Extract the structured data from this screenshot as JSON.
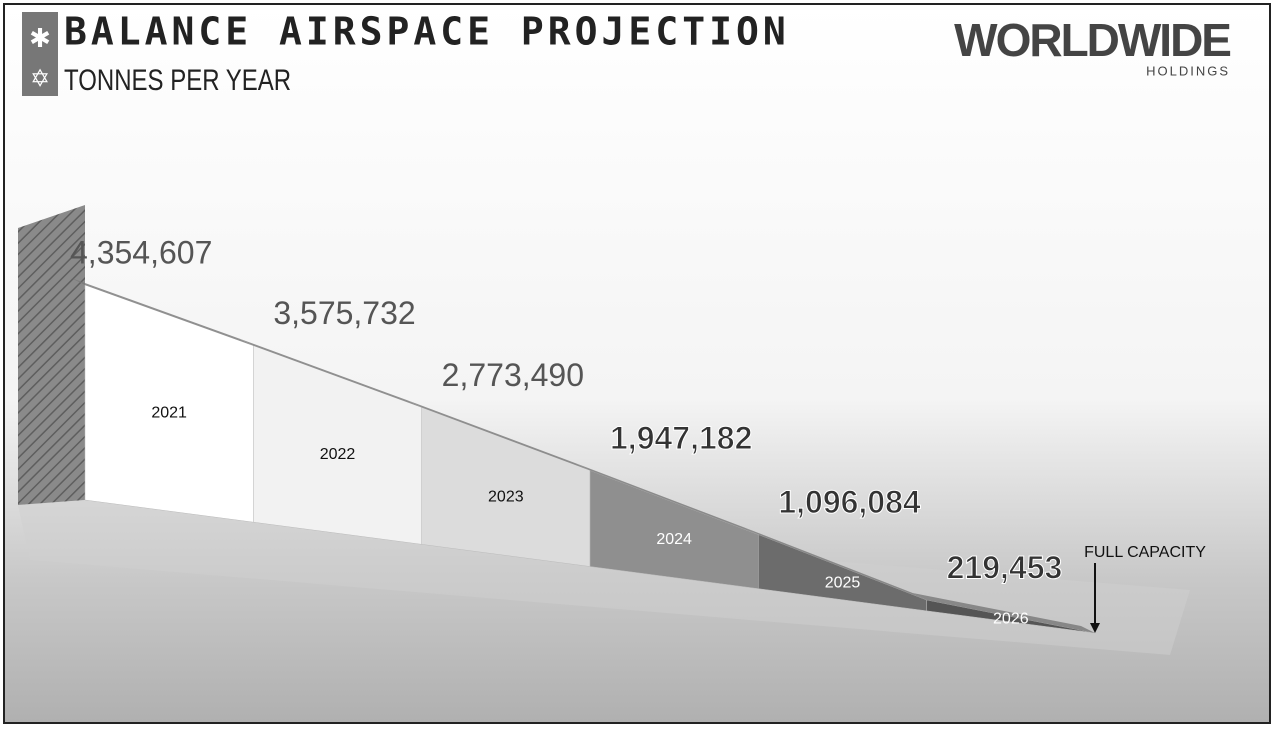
{
  "chart_data": {
    "type": "area3d",
    "title": "BALANCE AIRSPACE PROJECTION",
    "subtitle": "TONNES PER YEAR",
    "categories": [
      "2021",
      "2022",
      "2023",
      "2024",
      "2025",
      "2026"
    ],
    "values": [
      4354607,
      3575732,
      2773490,
      1947182,
      1096084,
      219453
    ],
    "value_labels": [
      "4,354,607",
      "3,575,732",
      "2,773,490",
      "1,947,182",
      "1,096,084",
      "219,453"
    ],
    "colors": [
      "#ffffff",
      "#f2f2f2",
      "#dcdcdc",
      "#8f8f8f",
      "#6c6c6c",
      "#555555"
    ],
    "annotation": "FULL CAPACITY"
  },
  "logo": {
    "name": "WORLDWIDE",
    "sub": "HOLDINGS"
  }
}
